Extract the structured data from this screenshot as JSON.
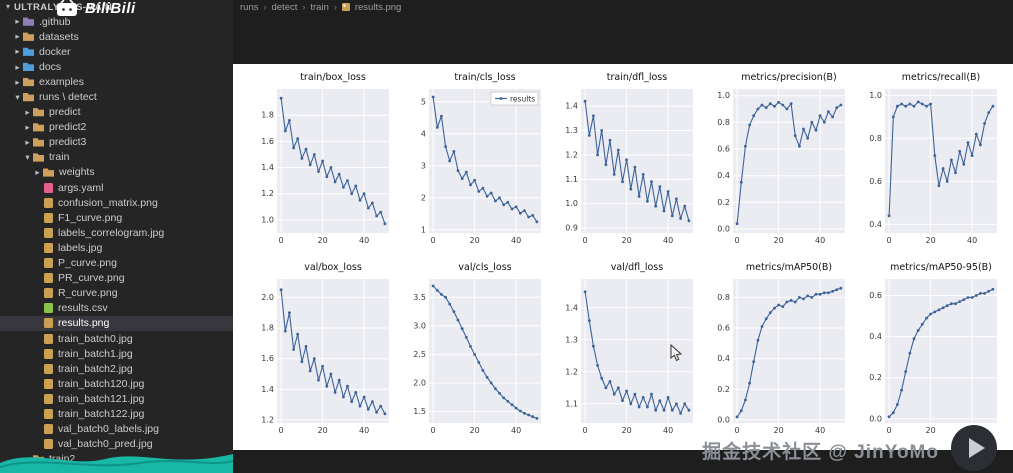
{
  "explorer": {
    "title": "ULTRALYTICS-MAIN",
    "items": [
      {
        "label": ".github",
        "indent": 1,
        "kind": "folder",
        "expanded": false,
        "color": "#8f7fb8"
      },
      {
        "label": "datasets",
        "indent": 1,
        "kind": "folder",
        "expanded": false,
        "color": "#cf9f5d"
      },
      {
        "label": "docker",
        "indent": 1,
        "kind": "folder",
        "expanded": false,
        "color": "#4f9fe0"
      },
      {
        "label": "docs",
        "indent": 1,
        "kind": "folder",
        "expanded": false,
        "color": "#4f9fe0"
      },
      {
        "label": "examples",
        "indent": 1,
        "kind": "folder",
        "expanded": false,
        "color": "#cf9f5d"
      },
      {
        "label": "runs \\ detect",
        "indent": 1,
        "kind": "folder",
        "expanded": true,
        "color": "#cf9f5d"
      },
      {
        "label": "predict",
        "indent": 2,
        "kind": "folder",
        "expanded": false,
        "color": "#cf9f5d"
      },
      {
        "label": "predict2",
        "indent": 2,
        "kind": "folder",
        "expanded": false,
        "color": "#cf9f5d"
      },
      {
        "label": "predict3",
        "indent": 2,
        "kind": "folder",
        "expanded": false,
        "color": "#cf9f5d"
      },
      {
        "label": "train",
        "indent": 2,
        "kind": "folder",
        "expanded": true,
        "color": "#cf9f5d"
      },
      {
        "label": "weights",
        "indent": 3,
        "kind": "folder",
        "expanded": false,
        "color": "#cf9f5d"
      },
      {
        "label": "args.yaml",
        "indent": 3,
        "kind": "file",
        "icon": "yaml",
        "color": "#e25f8f"
      },
      {
        "label": "confusion_matrix.png",
        "indent": 3,
        "kind": "file",
        "icon": "image",
        "color": "#caa053"
      },
      {
        "label": "F1_curve.png",
        "indent": 3,
        "kind": "file",
        "icon": "image",
        "color": "#caa053"
      },
      {
        "label": "labels_correlogram.jpg",
        "indent": 3,
        "kind": "file",
        "icon": "image",
        "color": "#caa053"
      },
      {
        "label": "labels.jpg",
        "indent": 3,
        "kind": "file",
        "icon": "image",
        "color": "#caa053"
      },
      {
        "label": "P_curve.png",
        "indent": 3,
        "kind": "file",
        "icon": "image",
        "color": "#caa053"
      },
      {
        "label": "PR_curve.png",
        "indent": 3,
        "kind": "file",
        "icon": "image",
        "color": "#caa053"
      },
      {
        "label": "R_curve.png",
        "indent": 3,
        "kind": "file",
        "icon": "image",
        "color": "#caa053"
      },
      {
        "label": "results.csv",
        "indent": 3,
        "kind": "file",
        "icon": "csv",
        "color": "#8bc34a"
      },
      {
        "label": "results.png",
        "indent": 3,
        "kind": "file",
        "icon": "image",
        "color": "#caa053",
        "selected": true
      },
      {
        "label": "train_batch0.jpg",
        "indent": 3,
        "kind": "file",
        "icon": "image",
        "color": "#caa053"
      },
      {
        "label": "train_batch1.jpg",
        "indent": 3,
        "kind": "file",
        "icon": "image",
        "color": "#caa053"
      },
      {
        "label": "train_batch2.jpg",
        "indent": 3,
        "kind": "file",
        "icon": "image",
        "color": "#caa053"
      },
      {
        "label": "train_batch120.jpg",
        "indent": 3,
        "kind": "file",
        "icon": "image",
        "color": "#caa053"
      },
      {
        "label": "train_batch121.jpg",
        "indent": 3,
        "kind": "file",
        "icon": "image",
        "color": "#caa053"
      },
      {
        "label": "train_batch122.jpg",
        "indent": 3,
        "kind": "file",
        "icon": "image",
        "color": "#caa053"
      },
      {
        "label": "val_batch0_labels.jpg",
        "indent": 3,
        "kind": "file",
        "icon": "image",
        "color": "#caa053"
      },
      {
        "label": "val_batch0_pred.jpg",
        "indent": 3,
        "kind": "file",
        "icon": "image",
        "color": "#caa053"
      },
      {
        "label": "train2",
        "indent": 2,
        "kind": "folder",
        "expanded": false,
        "color": "#cf9f5d"
      }
    ]
  },
  "breadcrumb": {
    "items": [
      "runs",
      "detect",
      "train",
      "results.png"
    ],
    "separator": "›"
  },
  "watermarks": {
    "top_logo_text": "BiliBili",
    "bottom_text": "掘金技术社区 @ JinYoMo"
  },
  "colors": {
    "sidebar_bg": "#252526",
    "editor_bg": "#1e1e1e",
    "selection": "#37373d",
    "accent_teal": "#18b7a6"
  },
  "chart_data": {
    "type": "line",
    "grid": {
      "rows": 2,
      "cols": 5
    },
    "figure_bg": "#ffffff",
    "plot_bg": "#ebebf2",
    "line_color": "#3d6399",
    "x": [
      0,
      2,
      4,
      6,
      8,
      10,
      12,
      14,
      16,
      18,
      20,
      22,
      24,
      26,
      28,
      30,
      32,
      34,
      36,
      38,
      40,
      42,
      44,
      46,
      48,
      50
    ],
    "xlim": [
      -2,
      52
    ],
    "xticks": [
      "0",
      "20",
      "40"
    ],
    "charts": [
      {
        "title": "train/box_loss",
        "ylim": [
          0.9,
          2.0
        ],
        "yticks": [
          "1.0",
          "1.2",
          "1.4",
          "1.6",
          "1.8"
        ],
        "values": [
          1.93,
          1.68,
          1.76,
          1.55,
          1.62,
          1.47,
          1.54,
          1.42,
          1.5,
          1.37,
          1.45,
          1.33,
          1.4,
          1.29,
          1.35,
          1.25,
          1.3,
          1.2,
          1.26,
          1.15,
          1.2,
          1.09,
          1.13,
          1.03,
          1.06,
          0.97
        ]
      },
      {
        "title": "train/cls_loss",
        "ylim": [
          0.9,
          5.4
        ],
        "yticks": [
          "1",
          "2",
          "3",
          "4",
          "5"
        ],
        "legend": "results",
        "values": [
          5.15,
          4.2,
          4.55,
          3.6,
          3.15,
          3.45,
          2.85,
          2.6,
          2.8,
          2.4,
          2.55,
          2.2,
          2.3,
          2.05,
          2.15,
          1.9,
          2.0,
          1.78,
          1.86,
          1.65,
          1.72,
          1.52,
          1.6,
          1.4,
          1.45,
          1.25
        ]
      },
      {
        "title": "train/dfl_loss",
        "ylim": [
          0.88,
          1.47
        ],
        "yticks": [
          "0.9",
          "1.0",
          "1.1",
          "1.2",
          "1.3",
          "1.4"
        ],
        "values": [
          1.42,
          1.28,
          1.36,
          1.2,
          1.3,
          1.16,
          1.26,
          1.12,
          1.22,
          1.09,
          1.18,
          1.06,
          1.15,
          1.03,
          1.12,
          1.01,
          1.09,
          0.99,
          1.07,
          0.97,
          1.05,
          0.95,
          1.02,
          0.94,
          0.99,
          0.93
        ]
      },
      {
        "title": "metrics/precision(B)",
        "ylim": [
          -0.03,
          1.05
        ],
        "yticks": [
          "0.0",
          "0.2",
          "0.4",
          "0.6",
          "0.8",
          "1.0"
        ],
        "values": [
          0.04,
          0.35,
          0.62,
          0.78,
          0.85,
          0.9,
          0.93,
          0.91,
          0.94,
          0.92,
          0.95,
          0.93,
          0.9,
          0.94,
          0.7,
          0.62,
          0.75,
          0.68,
          0.8,
          0.74,
          0.85,
          0.8,
          0.88,
          0.84,
          0.91,
          0.93
        ]
      },
      {
        "title": "metrics/recall(B)",
        "ylim": [
          0.36,
          1.03
        ],
        "yticks": [
          "0.4",
          "0.6",
          "0.8",
          "1.0"
        ],
        "values": [
          0.44,
          0.9,
          0.95,
          0.96,
          0.95,
          0.96,
          0.95,
          0.97,
          0.96,
          0.95,
          0.96,
          0.72,
          0.58,
          0.66,
          0.6,
          0.7,
          0.64,
          0.74,
          0.68,
          0.78,
          0.72,
          0.82,
          0.77,
          0.87,
          0.92,
          0.95
        ]
      },
      {
        "title": "val/box_loss",
        "ylim": [
          1.18,
          2.12
        ],
        "yticks": [
          "1.2",
          "1.4",
          "1.6",
          "1.8",
          "2.0"
        ],
        "values": [
          2.05,
          1.78,
          1.9,
          1.66,
          1.76,
          1.58,
          1.68,
          1.52,
          1.6,
          1.46,
          1.55,
          1.42,
          1.5,
          1.38,
          1.46,
          1.35,
          1.42,
          1.32,
          1.38,
          1.29,
          1.35,
          1.27,
          1.32,
          1.25,
          1.29,
          1.24
        ]
      },
      {
        "title": "val/cls_loss",
        "ylim": [
          1.3,
          3.82
        ],
        "yticks": [
          "1.5",
          "2.0",
          "2.5",
          "3.0",
          "3.5"
        ],
        "values": [
          3.7,
          3.62,
          3.55,
          3.5,
          3.38,
          3.25,
          3.1,
          2.95,
          2.8,
          2.64,
          2.5,
          2.36,
          2.22,
          2.1,
          2.0,
          1.9,
          1.82,
          1.74,
          1.68,
          1.62,
          1.56,
          1.51,
          1.47,
          1.44,
          1.41,
          1.38
        ]
      },
      {
        "title": "val/dfl_loss",
        "ylim": [
          1.04,
          1.49
        ],
        "yticks": [
          "1.1",
          "1.2",
          "1.3",
          "1.4"
        ],
        "values": [
          1.45,
          1.36,
          1.28,
          1.22,
          1.18,
          1.15,
          1.17,
          1.13,
          1.15,
          1.11,
          1.14,
          1.1,
          1.13,
          1.09,
          1.12,
          1.09,
          1.13,
          1.08,
          1.11,
          1.08,
          1.12,
          1.08,
          1.1,
          1.07,
          1.1,
          1.08
        ]
      },
      {
        "title": "metrics/mAP50(B)",
        "ylim": [
          -0.02,
          0.92
        ],
        "yticks": [
          "0.0",
          "0.2",
          "0.4",
          "0.6",
          "0.8"
        ],
        "values": [
          0.02,
          0.06,
          0.13,
          0.24,
          0.38,
          0.52,
          0.61,
          0.66,
          0.7,
          0.73,
          0.75,
          0.74,
          0.77,
          0.78,
          0.77,
          0.8,
          0.79,
          0.81,
          0.8,
          0.82,
          0.82,
          0.83,
          0.83,
          0.84,
          0.85,
          0.86
        ]
      },
      {
        "title": "metrics/mAP50-95(B)",
        "ylim": [
          -0.02,
          0.68
        ],
        "yticks": [
          "0.0",
          "0.2",
          "0.4",
          "0.6"
        ],
        "values": [
          0.01,
          0.03,
          0.07,
          0.14,
          0.23,
          0.32,
          0.39,
          0.43,
          0.46,
          0.49,
          0.51,
          0.52,
          0.53,
          0.54,
          0.55,
          0.56,
          0.56,
          0.57,
          0.58,
          0.59,
          0.59,
          0.6,
          0.61,
          0.61,
          0.62,
          0.63
        ]
      }
    ]
  }
}
